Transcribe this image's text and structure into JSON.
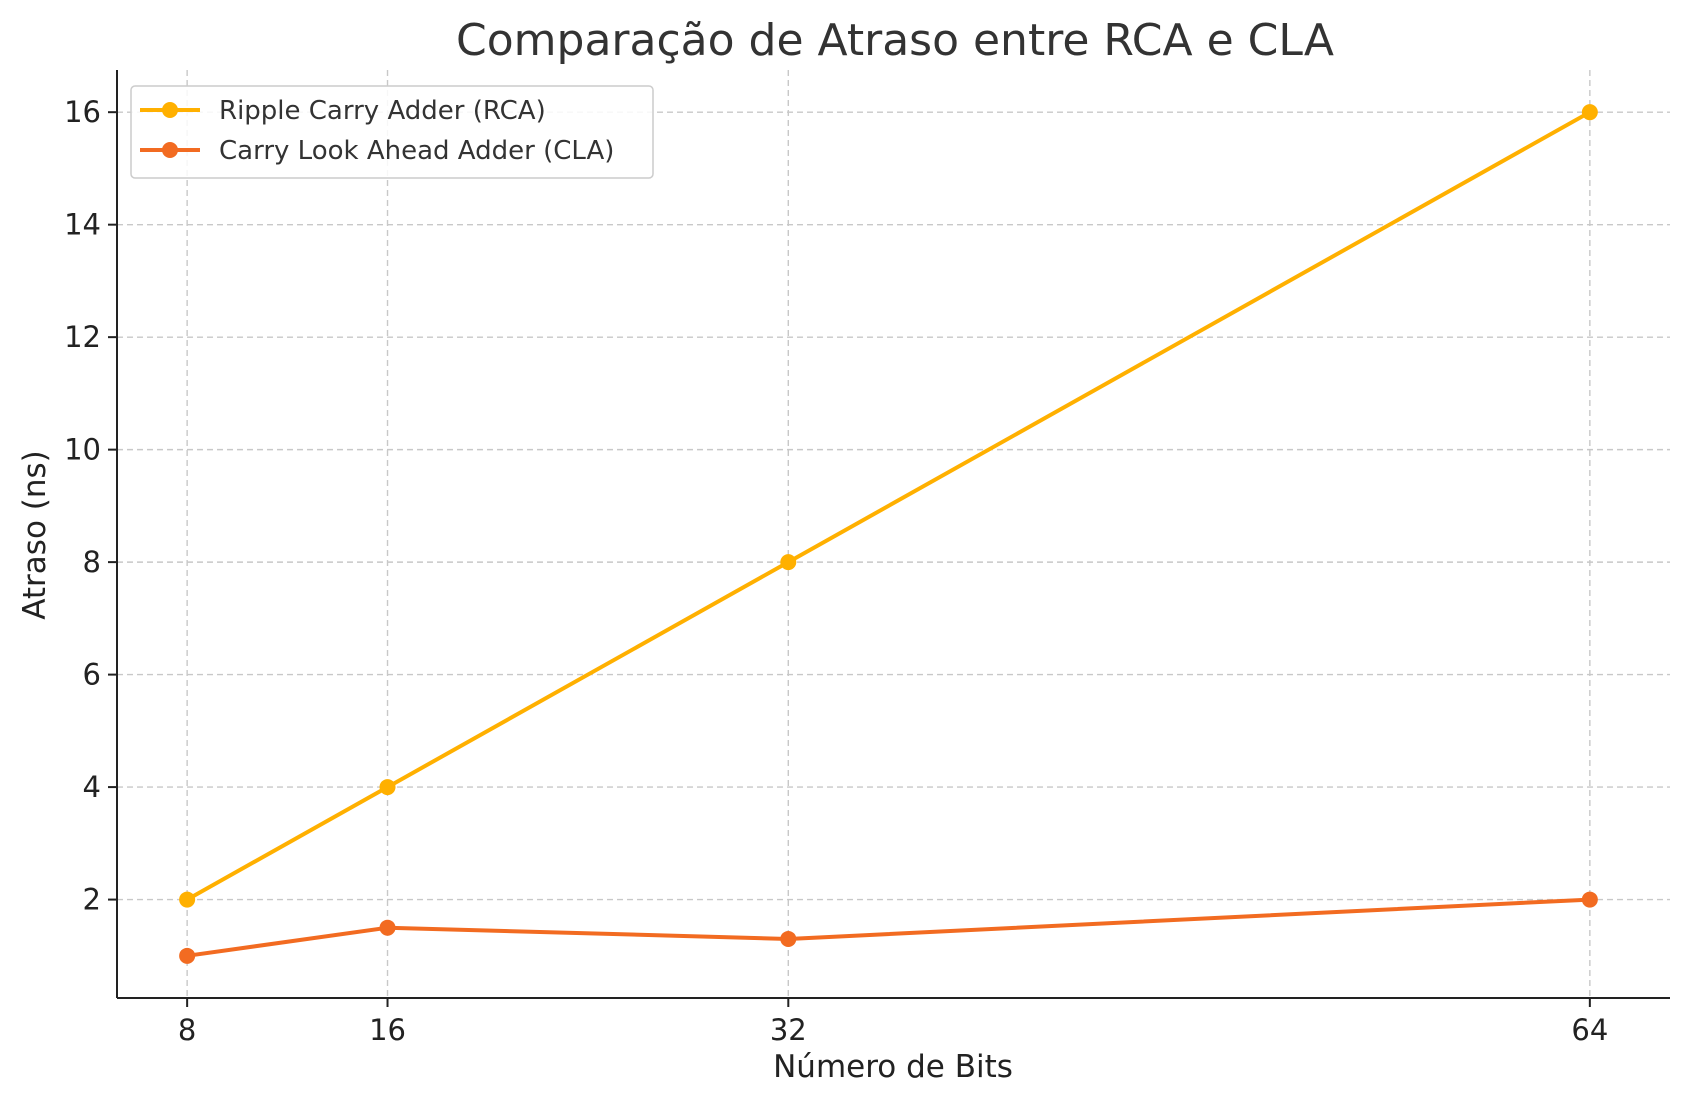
{
  "chart_data": {
    "type": "line",
    "title": "Comparação de Atraso entre RCA e CLA",
    "xlabel": "Número de Bits",
    "ylabel": "Atraso (ns)",
    "x": [
      8,
      16,
      32,
      64
    ],
    "xticks": [
      "8",
      "16",
      "32",
      "64"
    ],
    "yticks": [
      "2",
      "4",
      "6",
      "8",
      "10",
      "12",
      "14",
      "16"
    ],
    "xlim": [
      5.2,
      67.2
    ],
    "ylim": [
      0.25,
      16.75
    ],
    "grid": true,
    "legend_position": "top-left",
    "series": [
      {
        "name": "Ripple Carry Adder (RCA)",
        "color": "#FFB000",
        "marker": "circle",
        "values": [
          2,
          4,
          8,
          16
        ]
      },
      {
        "name": "Carry Look Ahead Adder (CLA)",
        "color": "#F26B21",
        "marker": "circle",
        "values": [
          1,
          1.5,
          1.3,
          2
        ]
      }
    ]
  }
}
